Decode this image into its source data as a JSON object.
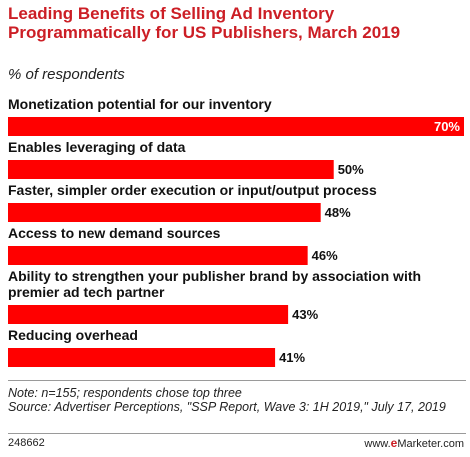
{
  "title": "Leading Benefits of Selling Ad Inventory Programmatically for US Publishers, March 2019",
  "subtitle": "% of respondents",
  "chart_data": {
    "type": "bar",
    "orientation": "horizontal",
    "title": "Leading Benefits of Selling Ad Inventory Programmatically for US Publishers, March 2019",
    "subtitle": "% of respondents",
    "categories": [
      [
        "Monetization potential for our inventory"
      ],
      [
        "Enables leveraging of data"
      ],
      [
        "Faster, simpler order execution or input/output process"
      ],
      [
        "Access to new demand sources"
      ],
      [
        "Ability to strengthen your publisher brand by association with",
        "premier ad tech partner"
      ],
      [
        "Reducing overhead"
      ]
    ],
    "values": [
      70,
      50,
      48,
      46,
      43,
      41
    ],
    "value_labels": [
      "70%",
      "50%",
      "48%",
      "46%",
      "43%",
      "41%"
    ],
    "unit": "%",
    "xlim": [
      0,
      70
    ],
    "bar_color": "#ff0000",
    "grid": false,
    "legend": "none"
  },
  "notes": {
    "line1": "Note: n=155; respondents chose top three",
    "line2": "Source: Advertiser Perceptions, \"SSP Report, Wave 3: 1H 2019,\" July 17, 2019"
  },
  "footer": {
    "chart_id": "248662",
    "brand_prefix": "www.",
    "brand_e": "e",
    "brand_suffix": "Marketer.com"
  },
  "colors": {
    "accent": "#cc1e25",
    "bar": "#ff0000",
    "text": "#111111"
  }
}
